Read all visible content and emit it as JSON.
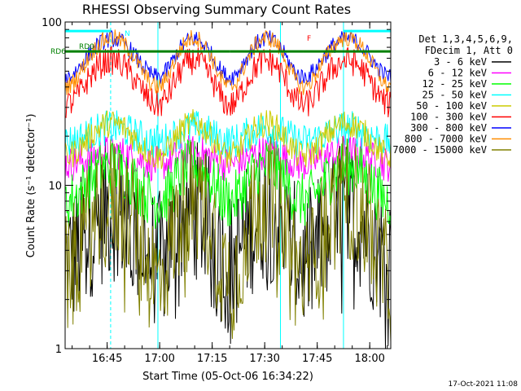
{
  "chart_data": {
    "type": "line",
    "title": "RHESSI Observing Summary Count Rates",
    "xlabel": "Start Time (05-Oct-06 16:34:22)",
    "ylabel": "Count Rate (s⁻¹ detector⁻¹)",
    "yscale": "log",
    "ylim": [
      1,
      100
    ],
    "xlim_minutes": [
      -2,
      91
    ],
    "x_ticks": [
      {
        "label": "16:45",
        "m": 10
      },
      {
        "label": "17:00",
        "m": 25
      },
      {
        "label": "17:15",
        "m": 40
      },
      {
        "label": "17:30",
        "m": 55
      },
      {
        "label": "17:45",
        "m": 70
      },
      {
        "label": "18:00",
        "m": 85
      }
    ],
    "y_ticks": [
      {
        "label": "1",
        "v": 1
      },
      {
        "label": "10",
        "v": 10
      },
      {
        "label": "100",
        "v": 100
      }
    ],
    "legend": {
      "placement": "right",
      "header": [
        "Det 1,3,4,5,6,9,",
        "FDecim 1, Att 0"
      ]
    },
    "series": [
      {
        "name": "3 - 6 keV",
        "color": "#000000",
        "base": 3.4,
        "amp": 3.6,
        "noise": 0.2
      },
      {
        "name": "6 - 12 keV",
        "color": "#ff00ff",
        "base": 13.5,
        "amp": 2.5,
        "noise": 0.05
      },
      {
        "name": "12 - 25 keV",
        "color": "#00ff00",
        "base": 8.0,
        "amp": 5.0,
        "noise": 0.08
      },
      {
        "name": "25 - 50 keV",
        "color": "#00ffff",
        "base": 18.5,
        "amp": 4.0,
        "noise": 0.05
      },
      {
        "name": "50 - 100 keV",
        "color": "#cccc00",
        "base": 15.0,
        "amp": 9.0,
        "noise": 0.04
      },
      {
        "name": "100 - 300 keV",
        "color": "#ff0000",
        "base": 31.0,
        "amp": 27.0,
        "noise": 0.04
      },
      {
        "name": "300 - 800 keV",
        "color": "#0000ff",
        "base": 46.0,
        "amp": 33.0,
        "noise": 0.025
      },
      {
        "name": "800 - 7000 keV",
        "color": "#ff8c00",
        "base": 40.0,
        "amp": 40.0,
        "noise": 0.025
      },
      {
        "name": "7000 - 15000 keV",
        "color": "#808000",
        "base": 2.7,
        "amp": 5.6,
        "noise": 0.18
      }
    ],
    "flag_lines": {
      "RD6": {
        "y": 66,
        "color": "#008000"
      },
      "N": {
        "y": 88,
        "color": "#00ffff"
      }
    },
    "flag_labels": {
      "rd6": "RD6",
      "rd0": "RD0",
      "n": "N",
      "f": "F"
    },
    "flag_colors": {
      "rd0": "#008000",
      "n": "#00ffff",
      "f": "#ff0000"
    },
    "night_marks_minutes": [
      -2,
      24.5,
      59.5,
      77.5
    ],
    "saa_marks_minutes": [
      11,
      91
    ]
  },
  "footer": {
    "timestamp": "17-Oct-2021 11:08"
  }
}
